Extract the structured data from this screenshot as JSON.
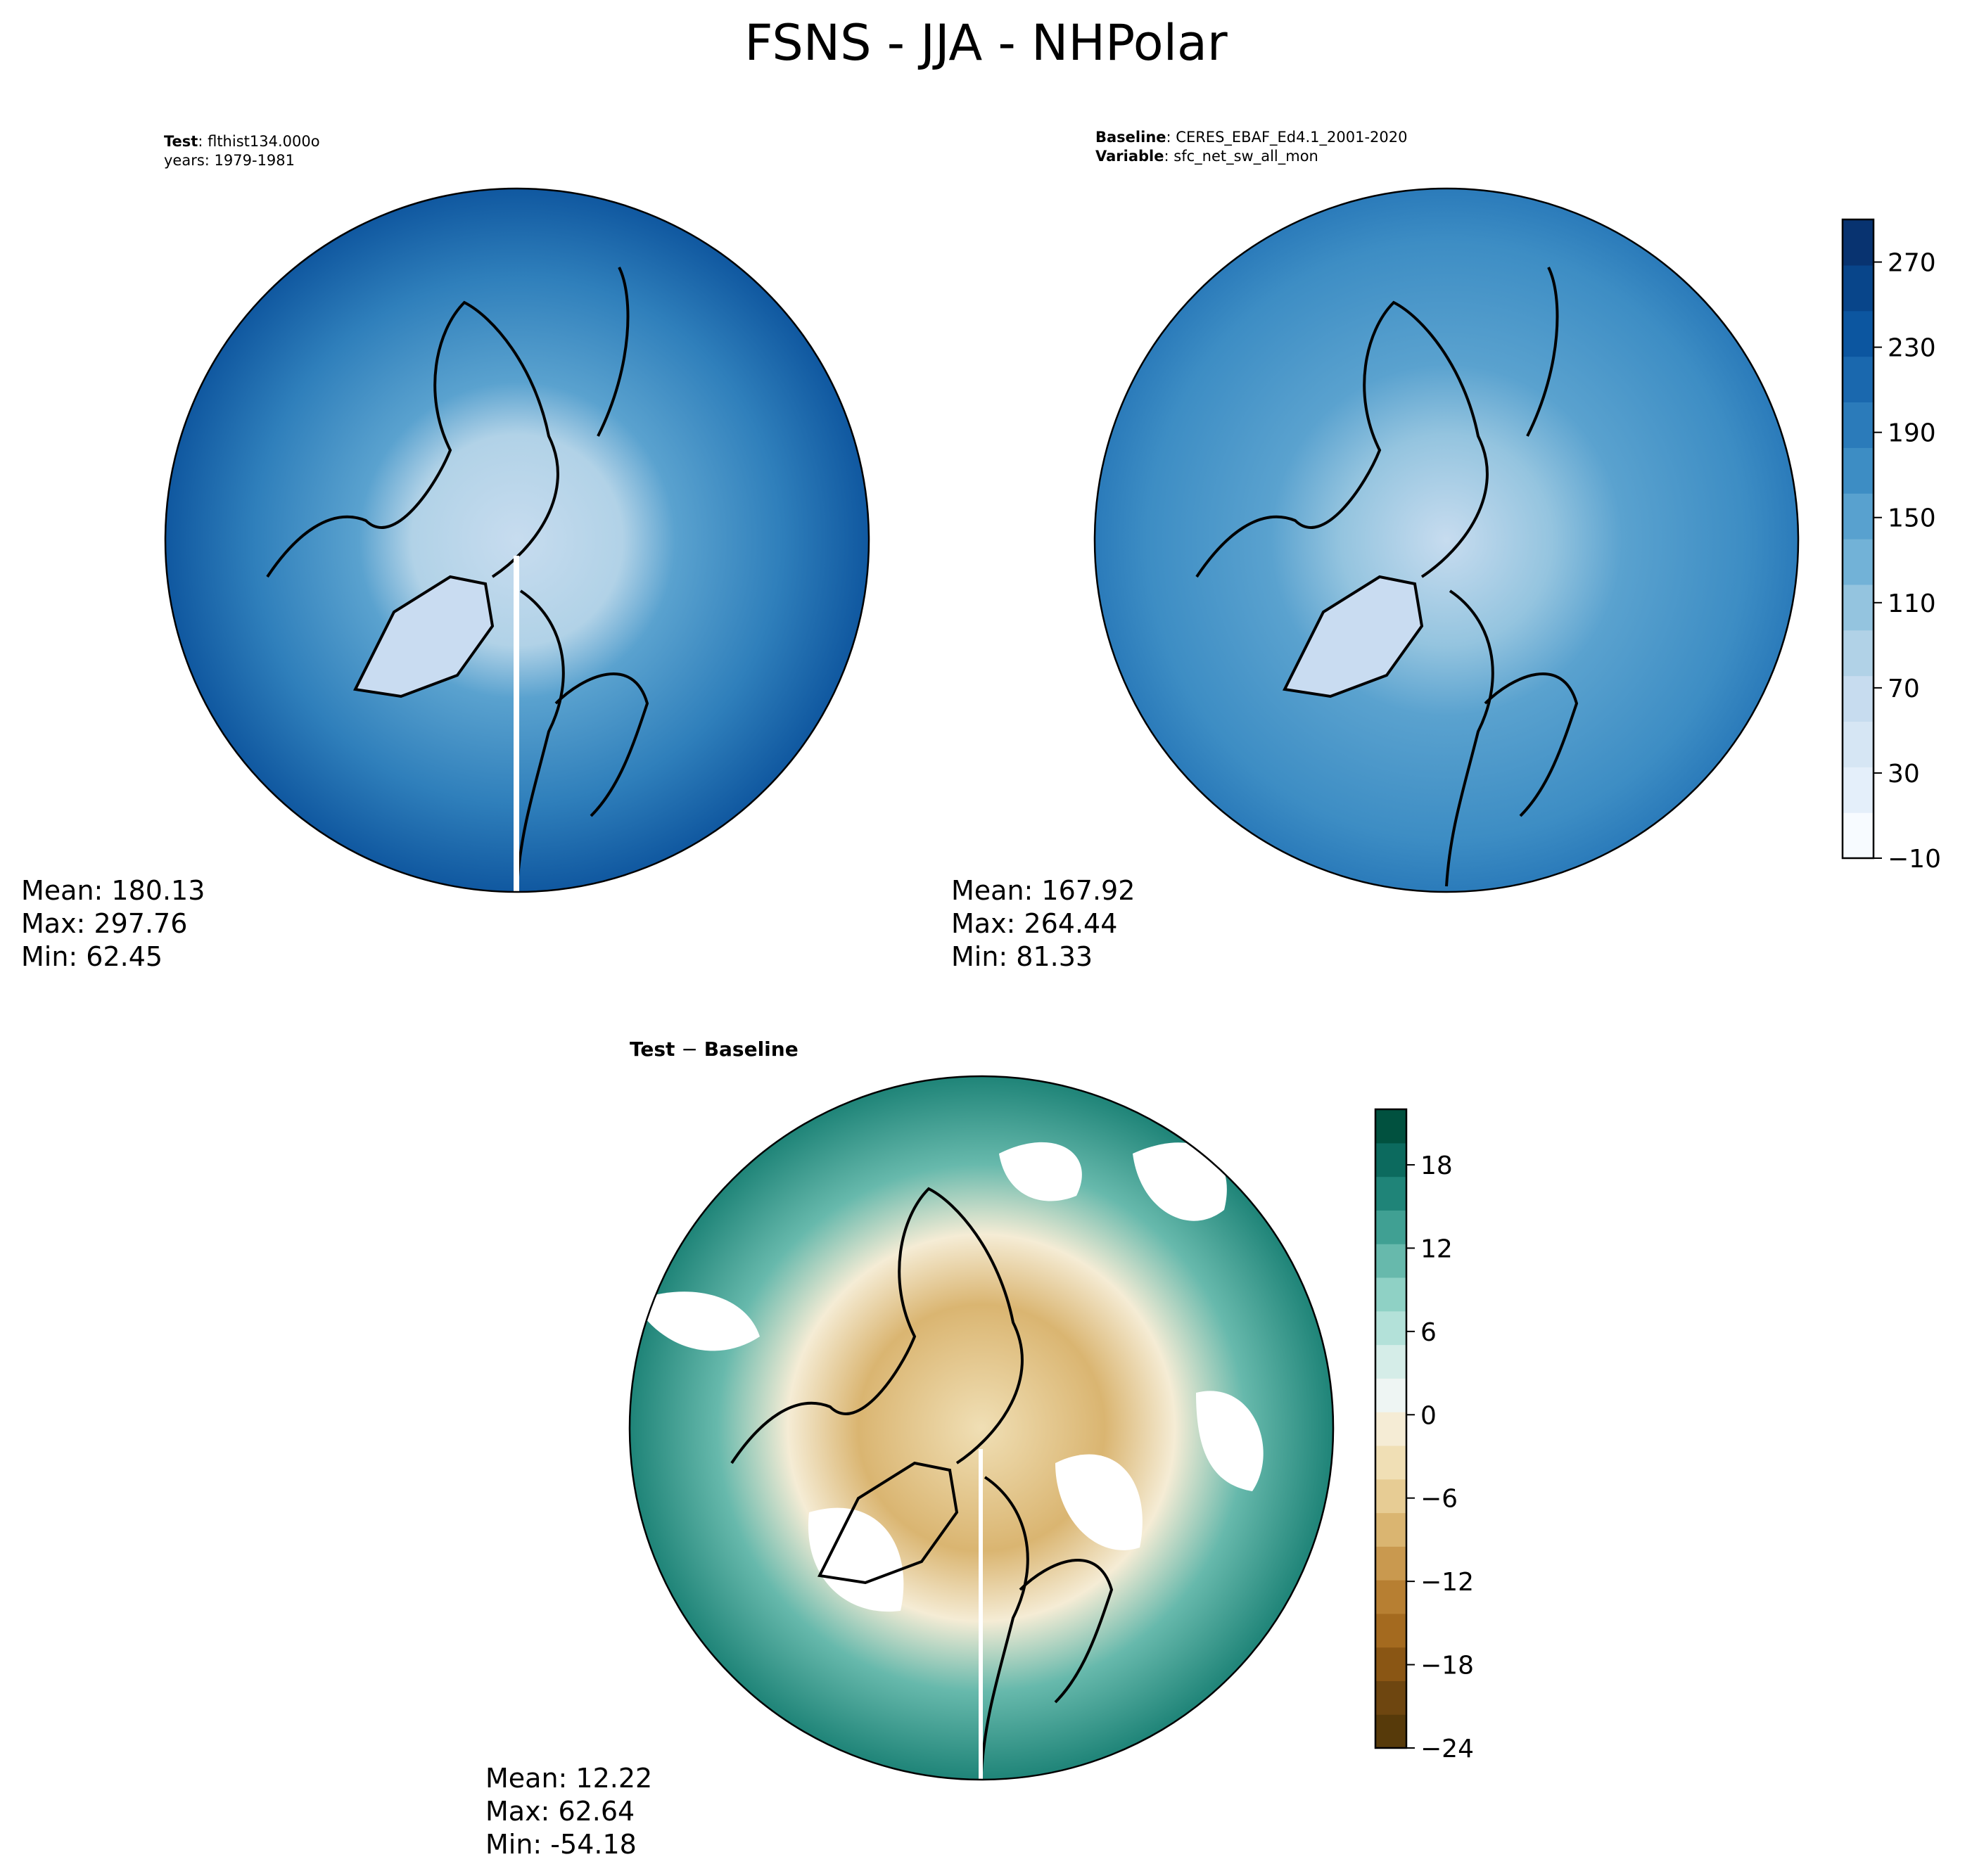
{
  "figure_title": "FSNS - JJA - NHPolar",
  "panels": {
    "test": {
      "label_key": "Test",
      "label_value": "flthist134.000o",
      "years": "years: 1979-1981",
      "stats": {
        "mean": "Mean: 180.13",
        "max": "Max: 297.76",
        "min": "Min: 62.45"
      }
    },
    "baseline": {
      "label_key": "Baseline",
      "label_value": "CERES_EBAF_Ed4.1_2001-2020",
      "variable_key": "Variable",
      "variable_value": "sfc_net_sw_all_mon",
      "stats": {
        "mean": "Mean: 167.92",
        "max": "Max: 264.44",
        "min": "Min: 81.33"
      }
    },
    "diff": {
      "title_key": "Test",
      "title_op": " − ",
      "title_value": "Baseline",
      "stats": {
        "mean": "Mean: 12.22",
        "max": "Max: 62.64",
        "min": "Min: -54.18"
      }
    }
  },
  "chart_data": [
    {
      "type": "heatmap",
      "name": "Test",
      "projection": "north-polar-stereographic",
      "mean": 180.13,
      "max": 297.76,
      "min": 62.45
    },
    {
      "type": "heatmap",
      "name": "Baseline",
      "projection": "north-polar-stereographic",
      "mean": 167.92,
      "max": 264.44,
      "min": 81.33,
      "colorbar": {
        "range": [
          -10,
          290
        ],
        "ticks": [
          -10,
          30,
          70,
          110,
          150,
          190,
          230,
          270
        ],
        "tick_labels": [
          "−10",
          "30",
          "70",
          "110",
          "150",
          "190",
          "230",
          "270"
        ],
        "colors": [
          "#f7fbff",
          "#e4effa",
          "#d6e6f4",
          "#c7dcef",
          "#b1d2e7",
          "#94c4df",
          "#72b2d7",
          "#58a1cf",
          "#3d8dc4",
          "#2b7bba",
          "#1a68ae",
          "#0c56a0",
          "#08458a",
          "#083370"
        ]
      }
    },
    {
      "type": "heatmap",
      "name": "Test − Baseline",
      "projection": "north-polar-stereographic",
      "mean": 12.22,
      "max": 62.64,
      "min": -54.18,
      "colorbar": {
        "range": [
          -24,
          22
        ],
        "ticks": [
          -24,
          -18,
          -12,
          -6,
          0,
          6,
          12,
          18
        ],
        "tick_labels": [
          "−24",
          "−18",
          "−12",
          "−6",
          "0",
          "6",
          "12",
          "18"
        ],
        "colors": [
          "#573a0a",
          "#6e4610",
          "#8a5614",
          "#a46a1f",
          "#b77f32",
          "#c9994f",
          "#dab571",
          "#e7cc94",
          "#f0dfb5",
          "#f5ecd5",
          "#eef5f3",
          "#d5ede8",
          "#b3e1d9",
          "#8fd1c5",
          "#67b9ac",
          "#40a093",
          "#1f8478",
          "#0c6a5e",
          "#01513f"
        ]
      }
    }
  ]
}
